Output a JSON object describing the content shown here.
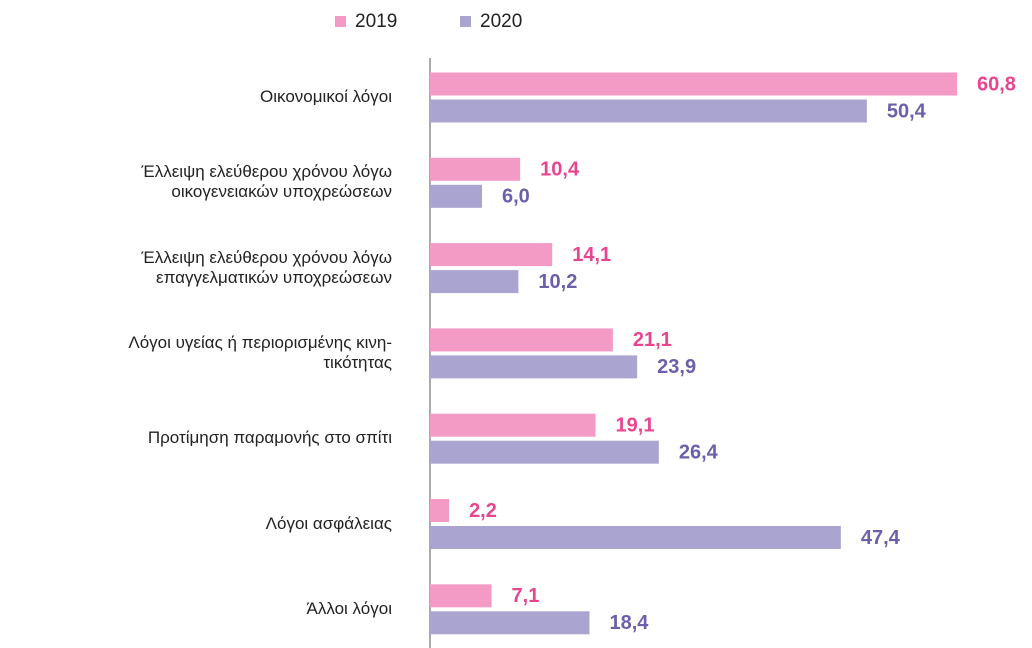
{
  "chart_data": {
    "type": "bar",
    "orientation": "horizontal",
    "categories": [
      "Οικονομικοί λόγοι",
      "Έλλειψη ελεύθερου χρόνου λόγω\nοικογενειακών υποχρεώσεων",
      "Έλλειψη ελεύθερου χρόνου λόγω\nεπαγγελματικών υποχρεώσεων",
      "Λόγοι υγείας ή περιορισμένης κινη-\nτικότητας",
      "Προτίμηση παραμονής στο σπίτι",
      "Λόγοι ασφάλειας",
      "Άλλοι λόγοι"
    ],
    "series": [
      {
        "name": "2019",
        "color": "#f39bc5",
        "label_color": "#e8458f",
        "values": [
          60.8,
          10.4,
          14.1,
          21.1,
          19.1,
          2.2,
          7.1
        ],
        "value_labels": [
          "60,8",
          "10,4",
          "14,1",
          "21,1",
          "19,1",
          "2,2",
          "7,1"
        ]
      },
      {
        "name": "2020",
        "color": "#aaa4d1",
        "label_color": "#6b60a9",
        "values": [
          50.4,
          6.0,
          10.2,
          23.9,
          26.4,
          47.4,
          18.4
        ],
        "value_labels": [
          "50,4",
          "6,0",
          "10,2",
          "23,9",
          "26,4",
          "47,4",
          "18,4"
        ]
      }
    ],
    "legend": "top"
  }
}
